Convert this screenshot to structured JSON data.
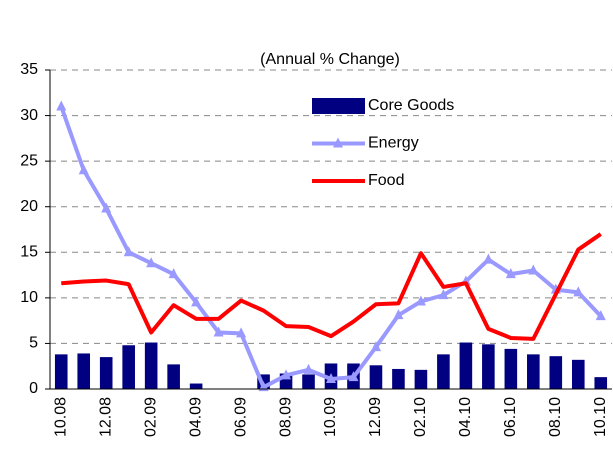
{
  "chart_data": {
    "type": "bar_line",
    "subtitle": "(Annual % Change)",
    "categories": [
      "10.08",
      null,
      "12.08",
      null,
      "02.09",
      null,
      "04.09",
      null,
      "06.09",
      null,
      "08.09",
      null,
      "10.09",
      null,
      "12.09",
      null,
      "02.10",
      null,
      "04.10",
      null,
      "06.10",
      null,
      "08.10",
      null,
      "10.10"
    ],
    "series": [
      {
        "name": "Core Goods",
        "kind": "bar",
        "color": "#000080",
        "values": [
          3.8,
          3.9,
          3.5,
          4.8,
          5.1,
          2.7,
          0.6,
          0,
          0,
          1.6,
          1.7,
          1.6,
          2.8,
          2.8,
          2.6,
          2.2,
          2.1,
          3.8,
          5.1,
          4.9,
          4.4,
          3.8,
          3.6,
          3.2,
          1.3
        ]
      },
      {
        "name": "Energy",
        "kind": "line",
        "marker": "triangle",
        "color": "#9999ff",
        "values": [
          31,
          24,
          19.8,
          15,
          13.8,
          12.6,
          9.5,
          6.2,
          6.1,
          0.2,
          1.5,
          2.1,
          1.1,
          1.3,
          4.6,
          8.1,
          9.6,
          10.3,
          11.8,
          14.2,
          12.6,
          13,
          10.9,
          10.6,
          8
        ]
      },
      {
        "name": "Food",
        "kind": "line",
        "color": "#ff0000",
        "values": [
          11.6,
          11.8,
          11.9,
          11.5,
          6.2,
          9.2,
          7.7,
          7.7,
          9.7,
          8.6,
          6.9,
          6.8,
          5.8,
          7.4,
          9.3,
          9.4,
          14.9,
          11.2,
          11.6,
          6.6,
          5.6,
          5.5,
          10.4,
          15.3,
          17
        ]
      }
    ],
    "ylim": [
      0,
      35
    ],
    "yticks": [
      0,
      5,
      10,
      15,
      20,
      25,
      30,
      35
    ],
    "grid": true,
    "legend": "upper right"
  }
}
